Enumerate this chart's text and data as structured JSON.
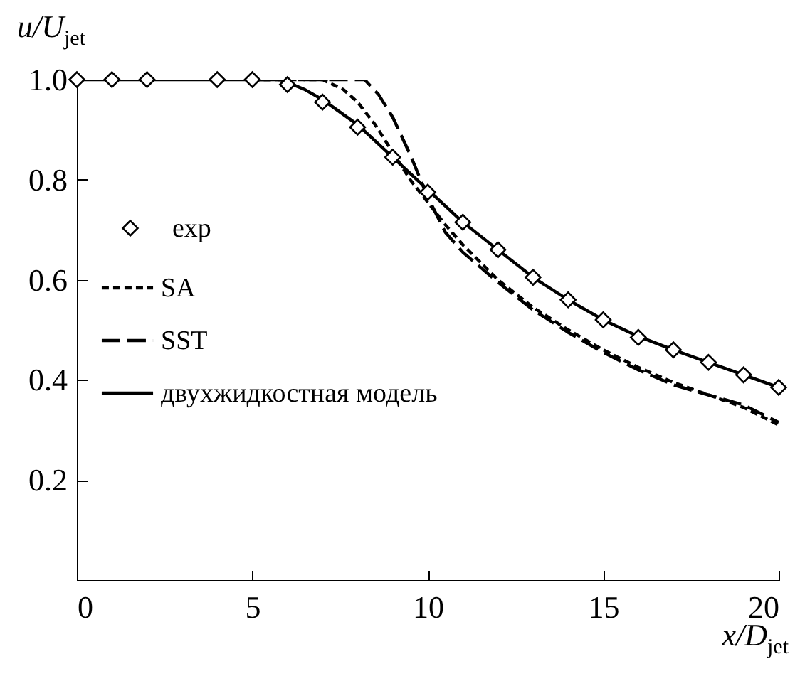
{
  "chart_data": {
    "type": "line",
    "xlabel": "x/D$_{jet}$",
    "ylabel": "u/U$_{jet}$",
    "xlim": [
      0,
      20
    ],
    "ylim": [
      0,
      1.0
    ],
    "xticks": [
      0,
      5,
      10,
      15,
      20
    ],
    "yticks": [
      0.2,
      0.4,
      0.6,
      0.8,
      {
        "value": 1.0,
        "label": "1.0"
      }
    ],
    "legend": "left",
    "grid": false,
    "series": [
      {
        "name": "exp",
        "type": "scatter",
        "marker": "diamond",
        "color": "#000000",
        "x": [
          0,
          1,
          2,
          4,
          5,
          6,
          7,
          8,
          9,
          10,
          11,
          12,
          13,
          14,
          15,
          16,
          17,
          18,
          19,
          20
        ],
        "values": [
          1.0,
          1.0,
          1.0,
          1.0,
          1.0,
          0.99,
          0.955,
          0.905,
          0.845,
          0.775,
          0.715,
          0.66,
          0.605,
          0.56,
          0.52,
          0.485,
          0.46,
          0.435,
          0.41,
          0.385
        ]
      },
      {
        "name": "SA",
        "line_style": "dotted",
        "color": "#000000",
        "x": [
          5,
          7,
          7.6,
          8,
          8.5,
          9,
          9.5,
          10,
          10.5,
          11,
          12,
          13,
          14,
          15,
          16,
          17,
          18,
          19,
          20
        ],
        "values": [
          1.0,
          1.0,
          0.98,
          0.955,
          0.91,
          0.855,
          0.8,
          0.755,
          0.71,
          0.67,
          0.6,
          0.545,
          0.5,
          0.46,
          0.425,
          0.395,
          0.37,
          0.345,
          0.31
        ]
      },
      {
        "name": "SST",
        "line_style": "dashed",
        "color": "#000000",
        "x": [
          5,
          8.2,
          8.6,
          9,
          9.5,
          10,
          10.5,
          11,
          12,
          13,
          14,
          15,
          16,
          17,
          18,
          19,
          20
        ],
        "values": [
          1.0,
          1.0,
          0.97,
          0.925,
          0.85,
          0.765,
          0.695,
          0.655,
          0.595,
          0.54,
          0.495,
          0.455,
          0.42,
          0.39,
          0.37,
          0.35,
          0.315
        ]
      },
      {
        "name": "двухжидкостная модель",
        "line_style": "solid",
        "color": "#000000",
        "x": [
          0,
          5,
          5.8,
          6.5,
          7,
          8,
          9,
          10,
          11,
          12,
          13,
          14,
          15,
          16,
          17,
          18,
          19,
          20
        ],
        "values": [
          1.0,
          1.0,
          1.0,
          0.98,
          0.96,
          0.91,
          0.845,
          0.78,
          0.715,
          0.66,
          0.605,
          0.56,
          0.52,
          0.487,
          0.46,
          0.435,
          0.41,
          0.385
        ]
      }
    ]
  }
}
